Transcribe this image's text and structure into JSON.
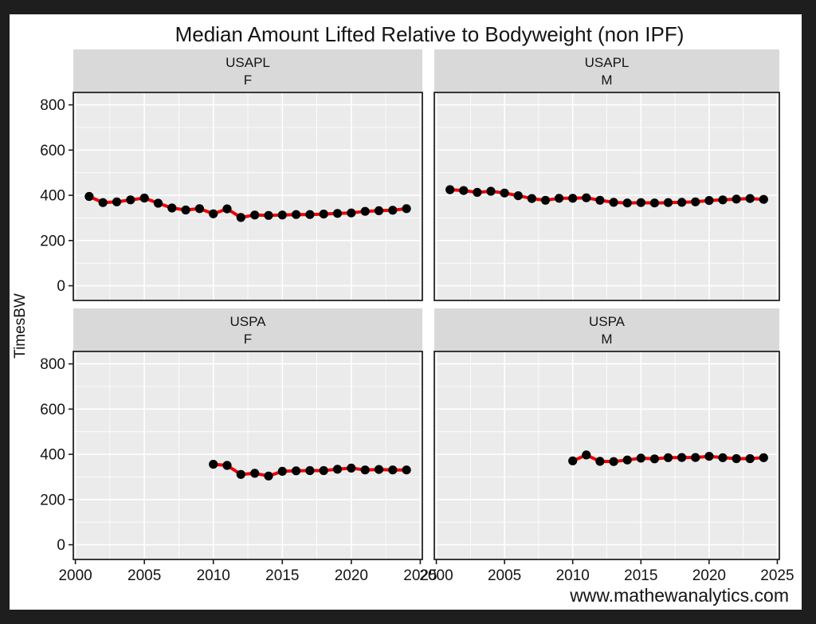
{
  "chart_data": {
    "type": "line",
    "title": "Median Amount Lifted Relative to Bodyweight (non IPF)",
    "ylabel": "TimesBW",
    "xlabel": "",
    "caption": "www.mathewanalytics.com",
    "legend_position": "none",
    "grid": true,
    "xlim": [
      1999.85,
      2025.15
    ],
    "ylim": [
      -65,
      855
    ],
    "x_ticks": [
      2000,
      2005,
      2010,
      2015,
      2020,
      2025
    ],
    "x_minor_ticks": [
      2002.5,
      2007.5,
      2012.5,
      2017.5,
      2022.5
    ],
    "y_ticks": [
      800,
      600,
      400,
      200,
      0
    ],
    "y_minor_ticks": [
      100,
      300,
      500,
      700
    ],
    "colors": {
      "line": "#EF0000",
      "point": "#000000",
      "panel_bg": "#EBEBEB",
      "strip_bg": "#D9D9D9",
      "grid_major": "#FFFFFF",
      "panel_border": "#1A1A1A",
      "outer_frame": "#1E1E1E",
      "plot_bg": "#FFFFFF"
    },
    "facets": [
      {
        "strip_line1": "USAPL",
        "strip_line2": "F",
        "x": [
          2001,
          2002,
          2003,
          2004,
          2005,
          2006,
          2007,
          2008,
          2009,
          2010,
          2011,
          2012,
          2013,
          2014,
          2015,
          2016,
          2017,
          2018,
          2019,
          2020,
          2021,
          2022,
          2023,
          2024
        ],
        "y": [
          395,
          368,
          371,
          380,
          388,
          365,
          344,
          335,
          341,
          318,
          340,
          302,
          313,
          311,
          313,
          315,
          315,
          317,
          320,
          322,
          329,
          332,
          334,
          341
        ]
      },
      {
        "strip_line1": "USAPL",
        "strip_line2": "M",
        "x": [
          2001,
          2002,
          2003,
          2004,
          2005,
          2006,
          2007,
          2008,
          2009,
          2010,
          2011,
          2012,
          2013,
          2014,
          2015,
          2016,
          2017,
          2018,
          2019,
          2020,
          2021,
          2022,
          2023,
          2024
        ],
        "y": [
          425,
          421,
          413,
          418,
          410,
          398,
          386,
          378,
          387,
          387,
          389,
          378,
          369,
          366,
          368,
          366,
          368,
          369,
          371,
          377,
          380,
          383,
          386,
          382
        ]
      },
      {
        "strip_line1": "USPA",
        "strip_line2": "F",
        "x": [
          2010,
          2011,
          2012,
          2013,
          2014,
          2015,
          2016,
          2017,
          2018,
          2019,
          2020,
          2021,
          2022,
          2023,
          2024
        ],
        "y": [
          356,
          351,
          311,
          316,
          304,
          325,
          327,
          328,
          328,
          334,
          339,
          331,
          333,
          331,
          331
        ]
      },
      {
        "strip_line1": "USPA",
        "strip_line2": "M",
        "x": [
          2010,
          2011,
          2012,
          2013,
          2014,
          2015,
          2016,
          2017,
          2018,
          2019,
          2020,
          2021,
          2022,
          2023,
          2024
        ],
        "y": [
          371,
          397,
          369,
          368,
          375,
          383,
          380,
          385,
          386,
          386,
          391,
          385,
          381,
          381,
          385
        ]
      }
    ]
  }
}
